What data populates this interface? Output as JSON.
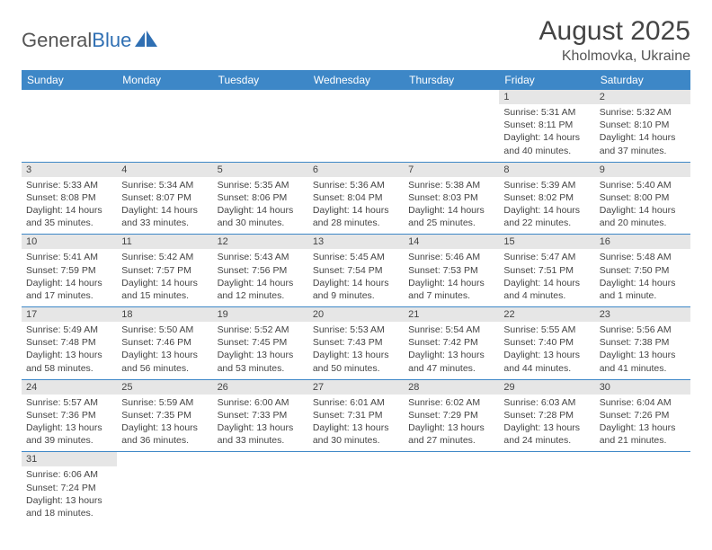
{
  "brand": {
    "part1": "General",
    "part2": "Blue"
  },
  "title": "August 2025",
  "location": "Kholmovka, Ukraine",
  "colors": {
    "header_bg": "#3d87c7",
    "header_text": "#ffffff",
    "daynum_bg": "#e6e6e6",
    "row_border": "#3d87c7",
    "brand_blue": "#2f6fb3",
    "text": "#444444"
  },
  "weekdays": [
    "Sunday",
    "Monday",
    "Tuesday",
    "Wednesday",
    "Thursday",
    "Friday",
    "Saturday"
  ],
  "grid": [
    [
      null,
      null,
      null,
      null,
      null,
      {
        "n": "1",
        "sr": "Sunrise: 5:31 AM",
        "ss": "Sunset: 8:11 PM",
        "dl1": "Daylight: 14 hours",
        "dl2": "and 40 minutes."
      },
      {
        "n": "2",
        "sr": "Sunrise: 5:32 AM",
        "ss": "Sunset: 8:10 PM",
        "dl1": "Daylight: 14 hours",
        "dl2": "and 37 minutes."
      }
    ],
    [
      {
        "n": "3",
        "sr": "Sunrise: 5:33 AM",
        "ss": "Sunset: 8:08 PM",
        "dl1": "Daylight: 14 hours",
        "dl2": "and 35 minutes."
      },
      {
        "n": "4",
        "sr": "Sunrise: 5:34 AM",
        "ss": "Sunset: 8:07 PM",
        "dl1": "Daylight: 14 hours",
        "dl2": "and 33 minutes."
      },
      {
        "n": "5",
        "sr": "Sunrise: 5:35 AM",
        "ss": "Sunset: 8:06 PM",
        "dl1": "Daylight: 14 hours",
        "dl2": "and 30 minutes."
      },
      {
        "n": "6",
        "sr": "Sunrise: 5:36 AM",
        "ss": "Sunset: 8:04 PM",
        "dl1": "Daylight: 14 hours",
        "dl2": "and 28 minutes."
      },
      {
        "n": "7",
        "sr": "Sunrise: 5:38 AM",
        "ss": "Sunset: 8:03 PM",
        "dl1": "Daylight: 14 hours",
        "dl2": "and 25 minutes."
      },
      {
        "n": "8",
        "sr": "Sunrise: 5:39 AM",
        "ss": "Sunset: 8:02 PM",
        "dl1": "Daylight: 14 hours",
        "dl2": "and 22 minutes."
      },
      {
        "n": "9",
        "sr": "Sunrise: 5:40 AM",
        "ss": "Sunset: 8:00 PM",
        "dl1": "Daylight: 14 hours",
        "dl2": "and 20 minutes."
      }
    ],
    [
      {
        "n": "10",
        "sr": "Sunrise: 5:41 AM",
        "ss": "Sunset: 7:59 PM",
        "dl1": "Daylight: 14 hours",
        "dl2": "and 17 minutes."
      },
      {
        "n": "11",
        "sr": "Sunrise: 5:42 AM",
        "ss": "Sunset: 7:57 PM",
        "dl1": "Daylight: 14 hours",
        "dl2": "and 15 minutes."
      },
      {
        "n": "12",
        "sr": "Sunrise: 5:43 AM",
        "ss": "Sunset: 7:56 PM",
        "dl1": "Daylight: 14 hours",
        "dl2": "and 12 minutes."
      },
      {
        "n": "13",
        "sr": "Sunrise: 5:45 AM",
        "ss": "Sunset: 7:54 PM",
        "dl1": "Daylight: 14 hours",
        "dl2": "and 9 minutes."
      },
      {
        "n": "14",
        "sr": "Sunrise: 5:46 AM",
        "ss": "Sunset: 7:53 PM",
        "dl1": "Daylight: 14 hours",
        "dl2": "and 7 minutes."
      },
      {
        "n": "15",
        "sr": "Sunrise: 5:47 AM",
        "ss": "Sunset: 7:51 PM",
        "dl1": "Daylight: 14 hours",
        "dl2": "and 4 minutes."
      },
      {
        "n": "16",
        "sr": "Sunrise: 5:48 AM",
        "ss": "Sunset: 7:50 PM",
        "dl1": "Daylight: 14 hours",
        "dl2": "and 1 minute."
      }
    ],
    [
      {
        "n": "17",
        "sr": "Sunrise: 5:49 AM",
        "ss": "Sunset: 7:48 PM",
        "dl1": "Daylight: 13 hours",
        "dl2": "and 58 minutes."
      },
      {
        "n": "18",
        "sr": "Sunrise: 5:50 AM",
        "ss": "Sunset: 7:46 PM",
        "dl1": "Daylight: 13 hours",
        "dl2": "and 56 minutes."
      },
      {
        "n": "19",
        "sr": "Sunrise: 5:52 AM",
        "ss": "Sunset: 7:45 PM",
        "dl1": "Daylight: 13 hours",
        "dl2": "and 53 minutes."
      },
      {
        "n": "20",
        "sr": "Sunrise: 5:53 AM",
        "ss": "Sunset: 7:43 PM",
        "dl1": "Daylight: 13 hours",
        "dl2": "and 50 minutes."
      },
      {
        "n": "21",
        "sr": "Sunrise: 5:54 AM",
        "ss": "Sunset: 7:42 PM",
        "dl1": "Daylight: 13 hours",
        "dl2": "and 47 minutes."
      },
      {
        "n": "22",
        "sr": "Sunrise: 5:55 AM",
        "ss": "Sunset: 7:40 PM",
        "dl1": "Daylight: 13 hours",
        "dl2": "and 44 minutes."
      },
      {
        "n": "23",
        "sr": "Sunrise: 5:56 AM",
        "ss": "Sunset: 7:38 PM",
        "dl1": "Daylight: 13 hours",
        "dl2": "and 41 minutes."
      }
    ],
    [
      {
        "n": "24",
        "sr": "Sunrise: 5:57 AM",
        "ss": "Sunset: 7:36 PM",
        "dl1": "Daylight: 13 hours",
        "dl2": "and 39 minutes."
      },
      {
        "n": "25",
        "sr": "Sunrise: 5:59 AM",
        "ss": "Sunset: 7:35 PM",
        "dl1": "Daylight: 13 hours",
        "dl2": "and 36 minutes."
      },
      {
        "n": "26",
        "sr": "Sunrise: 6:00 AM",
        "ss": "Sunset: 7:33 PM",
        "dl1": "Daylight: 13 hours",
        "dl2": "and 33 minutes."
      },
      {
        "n": "27",
        "sr": "Sunrise: 6:01 AM",
        "ss": "Sunset: 7:31 PM",
        "dl1": "Daylight: 13 hours",
        "dl2": "and 30 minutes."
      },
      {
        "n": "28",
        "sr": "Sunrise: 6:02 AM",
        "ss": "Sunset: 7:29 PM",
        "dl1": "Daylight: 13 hours",
        "dl2": "and 27 minutes."
      },
      {
        "n": "29",
        "sr": "Sunrise: 6:03 AM",
        "ss": "Sunset: 7:28 PM",
        "dl1": "Daylight: 13 hours",
        "dl2": "and 24 minutes."
      },
      {
        "n": "30",
        "sr": "Sunrise: 6:04 AM",
        "ss": "Sunset: 7:26 PM",
        "dl1": "Daylight: 13 hours",
        "dl2": "and 21 minutes."
      }
    ],
    [
      {
        "n": "31",
        "sr": "Sunrise: 6:06 AM",
        "ss": "Sunset: 7:24 PM",
        "dl1": "Daylight: 13 hours",
        "dl2": "and 18 minutes."
      },
      null,
      null,
      null,
      null,
      null,
      null
    ]
  ]
}
